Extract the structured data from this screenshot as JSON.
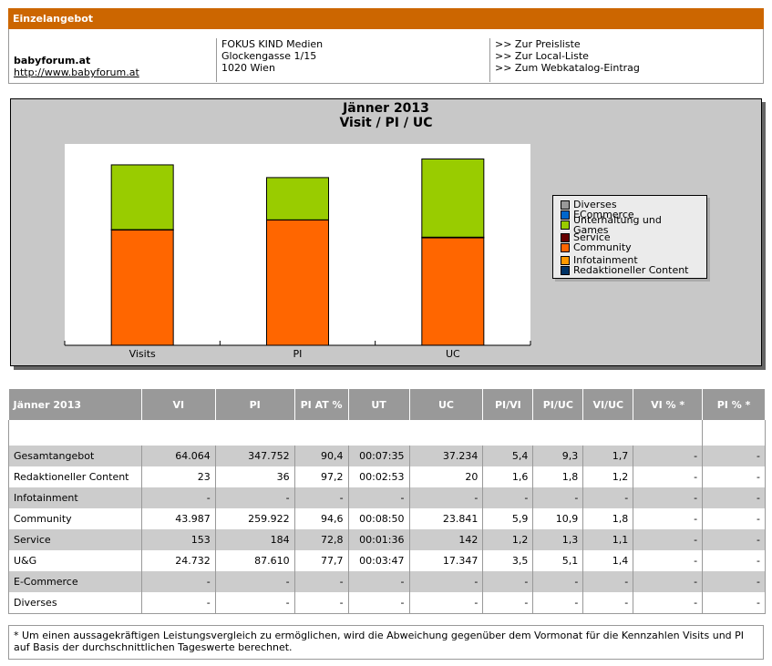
{
  "header": {
    "title": "Einzelangebot"
  },
  "site": {
    "name": "babyforum.at",
    "url": "http://www.babyforum.at",
    "publisher": [
      "FOKUS KIND Medien",
      "Glockengasse 1/15",
      "1020 Wien"
    ],
    "links": [
      ">> Zur Preisliste",
      ">> Zur Local-Liste",
      ">> Zum Webkatalog-Eintrag"
    ]
  },
  "chart_data": {
    "type": "bar",
    "stacked": true,
    "title": "Jänner 2013",
    "subtitle": "Visit / PI / UC",
    "xlabel": "",
    "ylabel": "",
    "categories": [
      "Visits",
      "PI",
      "UC"
    ],
    "ylim": [
      0,
      120
    ],
    "unit": "% of Gesamtangebot",
    "series": [
      {
        "name": "Redaktioneller Content",
        "color": "#003366",
        "values": [
          0.04,
          0.01,
          0.05
        ]
      },
      {
        "name": "Infotainment",
        "color": "#ff9900",
        "values": [
          0,
          0,
          0
        ]
      },
      {
        "name": "Community",
        "color": "#ff6600",
        "values": [
          68.7,
          74.7,
          64.0
        ]
      },
      {
        "name": "Service",
        "color": "#660000",
        "values": [
          0.2,
          0.05,
          0.4
        ]
      },
      {
        "name": "Unterhaltung und Games",
        "color": "#99cc00",
        "values": [
          38.6,
          25.2,
          46.6
        ]
      },
      {
        "name": "ECommerce",
        "color": "#0066cc",
        "values": [
          0,
          0,
          0
        ]
      },
      {
        "name": "Diverses",
        "color": "#999999",
        "values": [
          0,
          0,
          0
        ]
      }
    ],
    "legend_order": [
      "Diverses",
      "ECommerce",
      "Unterhaltung und Games",
      "Service",
      "Community",
      "Infotainment",
      "Redaktioneller Content"
    ],
    "legend_position": "right",
    "grid": false
  },
  "table": {
    "headers": [
      "Jänner 2013",
      "VI",
      "PI",
      "PI AT %",
      "UT",
      "UC",
      "PI/VI",
      "PI/UC",
      "VI/UC",
      "VI % *",
      "PI % *"
    ],
    "rows": [
      [
        "Gesamtangebot",
        "64.064",
        "347.752",
        "90,4",
        "00:07:35",
        "37.234",
        "5,4",
        "9,3",
        "1,7",
        "-",
        "-"
      ],
      [
        "Redaktioneller Content",
        "23",
        "36",
        "97,2",
        "00:02:53",
        "20",
        "1,6",
        "1,8",
        "1,2",
        "-",
        "-"
      ],
      [
        "Infotainment",
        "-",
        "-",
        "-",
        "-",
        "-",
        "-",
        "-",
        "-",
        "-",
        "-"
      ],
      [
        "Community",
        "43.987",
        "259.922",
        "94,6",
        "00:08:50",
        "23.841",
        "5,9",
        "10,9",
        "1,8",
        "-",
        "-"
      ],
      [
        "Service",
        "153",
        "184",
        "72,8",
        "00:01:36",
        "142",
        "1,2",
        "1,3",
        "1,1",
        "-",
        "-"
      ],
      [
        "U&G",
        "24.732",
        "87.610",
        "77,7",
        "00:03:47",
        "17.347",
        "3,5",
        "5,1",
        "1,4",
        "-",
        "-"
      ],
      [
        "E-Commerce",
        "-",
        "-",
        "-",
        "-",
        "-",
        "-",
        "-",
        "-",
        "-",
        "-"
      ],
      [
        "Diverses",
        "-",
        "-",
        "-",
        "-",
        "-",
        "-",
        "-",
        "-",
        "-",
        "-"
      ]
    ]
  },
  "footnote": "* Um einen aussagekräftigen Leistungsvergleich zu ermöglichen, wird die Abweichung gegenüber dem Vormonat für die Kennzahlen Visits und PI auf Basis der durchschnittlichen Tageswerte berechnet."
}
